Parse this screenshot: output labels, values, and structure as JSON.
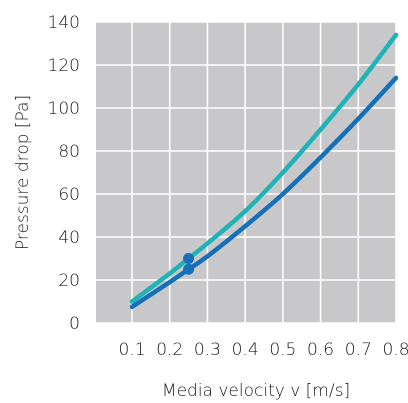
{
  "chart_data": {
    "type": "line",
    "xlabel": "Media velocity v [m/s]",
    "ylabel": "Pressure drop [Pa]",
    "xlim": [
      0.1,
      0.8
    ],
    "ylim": [
      0,
      140
    ],
    "x_ticks": [
      "0.1",
      "0.2",
      "0.3",
      "0.4",
      "0.5",
      "0.6",
      "0.7",
      "0.8"
    ],
    "y_ticks": [
      "0",
      "20",
      "40",
      "60",
      "80",
      "100",
      "120",
      "140"
    ],
    "grid": true,
    "background_color": "#c8c8ca",
    "grid_color": "#ffffff",
    "series": [
      {
        "color": "#1fb3b8",
        "x": [
          0.1,
          0.2,
          0.25,
          0.3,
          0.4,
          0.5,
          0.6,
          0.7,
          0.8
        ],
        "y": [
          10,
          23,
          30,
          37,
          52,
          70,
          90,
          111,
          134
        ]
      },
      {
        "color": "#1670b8",
        "x": [
          0.1,
          0.2,
          0.25,
          0.3,
          0.4,
          0.5,
          0.6,
          0.7,
          0.8
        ],
        "y": [
          7.5,
          19,
          25,
          31,
          45,
          60,
          77,
          95,
          114
        ]
      }
    ],
    "markers": [
      {
        "x": 0.25,
        "y": 30,
        "color": "#1670b8"
      },
      {
        "x": 0.25,
        "y": 25,
        "color": "#1670b8"
      }
    ]
  }
}
